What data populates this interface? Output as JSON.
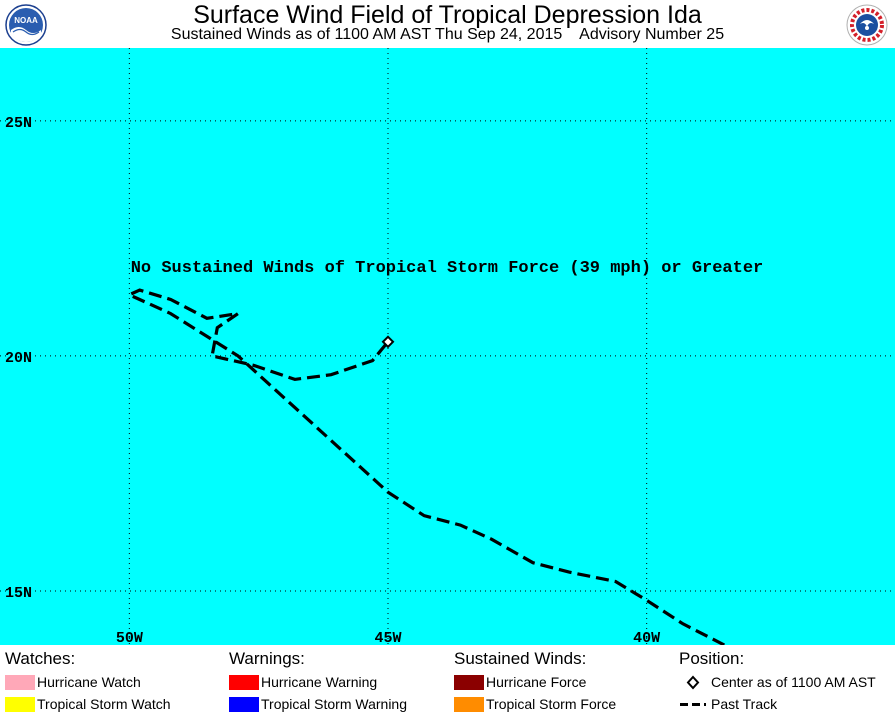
{
  "header": {
    "title": "Surface Wind Field of Tropical Depression Ida",
    "subtitle": "Sustained Winds as of 1100 AM AST Thu Sep 24, 2015    Advisory Number 25",
    "left_logo_icon": "noaa-logo-icon",
    "left_logo_text": "NOAA",
    "right_logo_icon": "national-weather-service-logo-icon"
  },
  "map": {
    "background_color": "#00ffff",
    "lon_range": [
      -52.5,
      -35.2
    ],
    "lat_range": [
      13.85,
      26.55
    ],
    "lat_lines": [
      {
        "value": 25,
        "label": "25N"
      },
      {
        "value": 20,
        "label": "20N"
      },
      {
        "value": 15,
        "label": "15N"
      }
    ],
    "lon_lines": [
      {
        "value": -50,
        "label": "50W"
      },
      {
        "value": -45,
        "label": "45W"
      },
      {
        "value": -40,
        "label": "40W"
      }
    ],
    "message": "No Sustained Winds of Tropical Storm Force (39 mph) or Greater",
    "center": {
      "lon": -45.0,
      "lat": 20.3
    },
    "past_track": [
      [
        -38.5,
        13.85
      ],
      [
        -39.3,
        14.3
      ],
      [
        -40.0,
        14.8
      ],
      [
        -40.6,
        15.2
      ],
      [
        -41.5,
        15.4
      ],
      [
        -42.2,
        15.6
      ],
      [
        -43.0,
        16.1
      ],
      [
        -43.6,
        16.4
      ],
      [
        -44.3,
        16.6
      ],
      [
        -45.0,
        17.1
      ],
      [
        -45.8,
        17.9
      ],
      [
        -46.8,
        18.9
      ],
      [
        -47.9,
        20.0
      ],
      [
        -49.2,
        20.9
      ],
      [
        -50.0,
        21.3
      ],
      [
        -49.8,
        21.4
      ],
      [
        -49.2,
        21.2
      ],
      [
        -48.5,
        20.8
      ],
      [
        -47.9,
        20.9
      ],
      [
        -48.3,
        20.6
      ],
      [
        -48.4,
        20.0
      ],
      [
        -47.6,
        19.8
      ],
      [
        -46.8,
        19.5
      ],
      [
        -46.1,
        19.6
      ],
      [
        -45.3,
        19.9
      ],
      [
        -45.0,
        20.3
      ]
    ]
  },
  "legend": {
    "watches": {
      "title": "Watches:",
      "items": [
        {
          "label": "Hurricane Watch",
          "color": "#ffa8b8"
        },
        {
          "label": "Tropical Storm Watch",
          "color": "#ffff00"
        }
      ]
    },
    "warnings": {
      "title": "Warnings:",
      "items": [
        {
          "label": "Hurricane Warning",
          "color": "#ff0000"
        },
        {
          "label": "Tropical Storm Warning",
          "color": "#0000ff"
        }
      ]
    },
    "winds": {
      "title": "Sustained Winds:",
      "items": [
        {
          "label": "Hurricane Force",
          "color": "#8b0000"
        },
        {
          "label": "Tropical Storm Force",
          "color": "#ff8c00"
        }
      ]
    },
    "position": {
      "title": "Position:",
      "items": [
        {
          "label": "Center as of 1100 AM AST",
          "icon": "diamond-icon"
        },
        {
          "label": "Past Track",
          "icon": "dashed-line-icon"
        }
      ]
    }
  }
}
